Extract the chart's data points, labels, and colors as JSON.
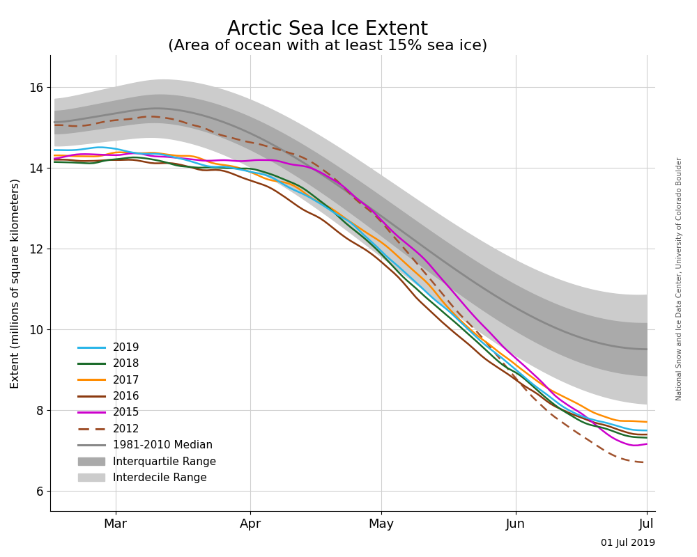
{
  "title_line1": "Arctic Sea Ice Extent",
  "title_line2": "(Area of ocean with at least 15% sea ice)",
  "ylabel": "Extent (millions of square kilometers)",
  "xlabel_date": "01 Jul 2019",
  "watermark": "National Snow and Ice Data Center, University of Colorado Boulder",
  "background_color": "#ffffff",
  "plot_bg_color": "#ffffff",
  "ylim": [
    5.5,
    16.8
  ],
  "yticks": [
    6,
    8,
    10,
    12,
    14,
    16
  ],
  "colors": {
    "2019": "#29B5E8",
    "2018": "#1B6B2A",
    "2017": "#FF8C00",
    "2016": "#8B3A0F",
    "2015": "#CC00CC",
    "2012": "#A0522D",
    "median": "#888888",
    "interquartile": "#AAAAAA",
    "interdecile": "#CCCCCC"
  },
  "day_start": 46,
  "day_end": 182
}
